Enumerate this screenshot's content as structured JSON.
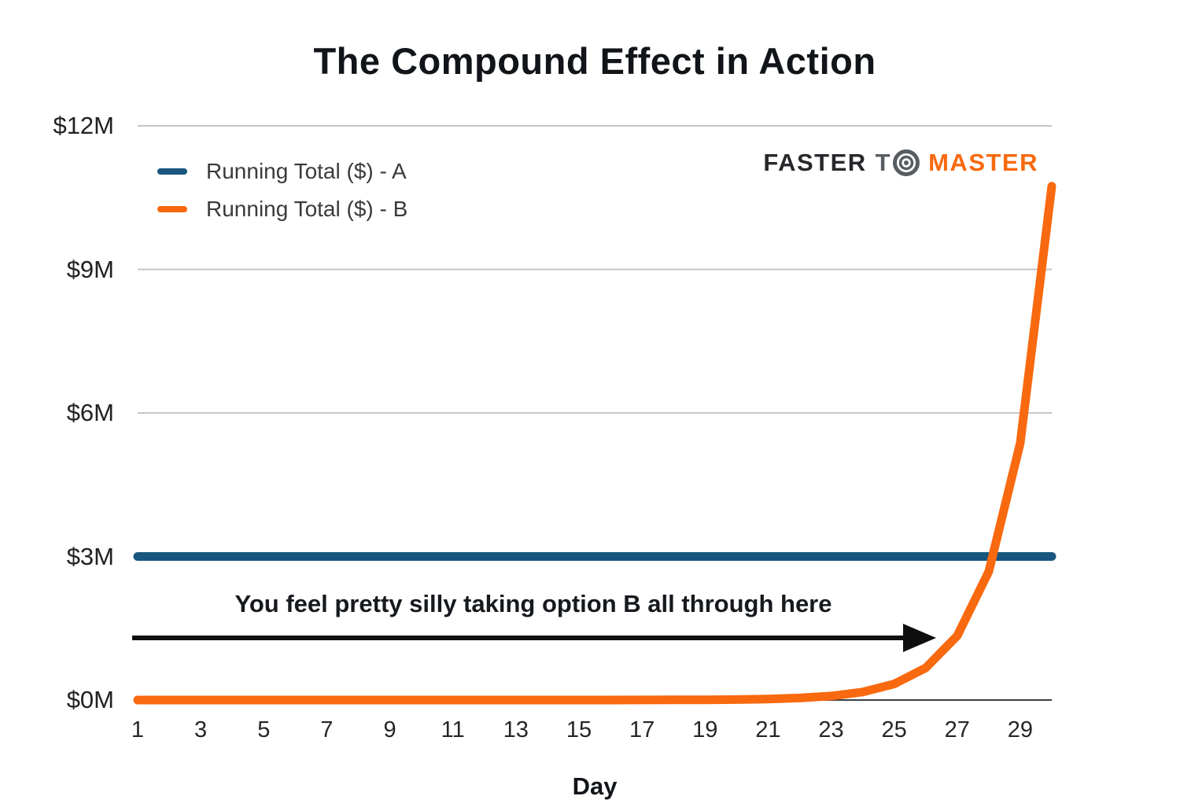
{
  "title": "The Compound Effect in Action",
  "logo": {
    "part1": "FASTER",
    "part2": "T",
    "icon": "bullseye-icon",
    "part3": "MASTER",
    "dark_color": "#26282b",
    "gray_color": "#575d63",
    "orange_color": "#f9690f"
  },
  "annotation": {
    "text": "You feel pretty silly taking option B all through here"
  },
  "chart_data": {
    "type": "line",
    "title": "The Compound Effect in Action",
    "xlabel": "Day",
    "ylabel": "",
    "xlim": [
      1,
      30
    ],
    "ylim": [
      0,
      12
    ],
    "grid": "horizontal",
    "legend_position": "top-left",
    "grid_color": "#c6c6c6",
    "axis_color": "#3c4043",
    "x_ticks": [
      1,
      3,
      5,
      7,
      9,
      11,
      13,
      15,
      17,
      19,
      21,
      23,
      25,
      27,
      29
    ],
    "y_ticks": [
      {
        "value": 0,
        "label": "$0M"
      },
      {
        "value": 3,
        "label": "$3M"
      },
      {
        "value": 6,
        "label": "$6M"
      },
      {
        "value": 9,
        "label": "$9M"
      },
      {
        "value": 12,
        "label": "$12M"
      }
    ],
    "x": [
      1,
      2,
      3,
      4,
      5,
      6,
      7,
      8,
      9,
      10,
      11,
      12,
      13,
      14,
      15,
      16,
      17,
      18,
      19,
      20,
      21,
      22,
      23,
      24,
      25,
      26,
      27,
      28,
      29,
      30
    ],
    "series": [
      {
        "name": "Running Total ($) - A",
        "color": "#19567f",
        "units": "$M",
        "values": [
          3,
          3,
          3,
          3,
          3,
          3,
          3,
          3,
          3,
          3,
          3,
          3,
          3,
          3,
          3,
          3,
          3,
          3,
          3,
          3,
          3,
          3,
          3,
          3,
          3,
          3,
          3,
          3,
          3,
          3
        ]
      },
      {
        "name": "Running Total ($) - B",
        "color": "#f9690f",
        "units": "$M",
        "values": [
          1e-08,
          3e-08,
          7e-08,
          1.5e-07,
          3.1e-07,
          6.3e-07,
          1.27e-06,
          2.55e-06,
          5.11e-06,
          1.023e-05,
          2.047e-05,
          4.095e-05,
          8.191e-05,
          0.00016383,
          0.00032767,
          0.00065535,
          0.00131071,
          0.00262143,
          0.00524287,
          0.01048575,
          0.02097151,
          0.04194303,
          0.08388607,
          0.16777215,
          0.33554431,
          0.67108863,
          1.34217727,
          2.68435455,
          5.36870911,
          10.73741823
        ]
      }
    ]
  }
}
